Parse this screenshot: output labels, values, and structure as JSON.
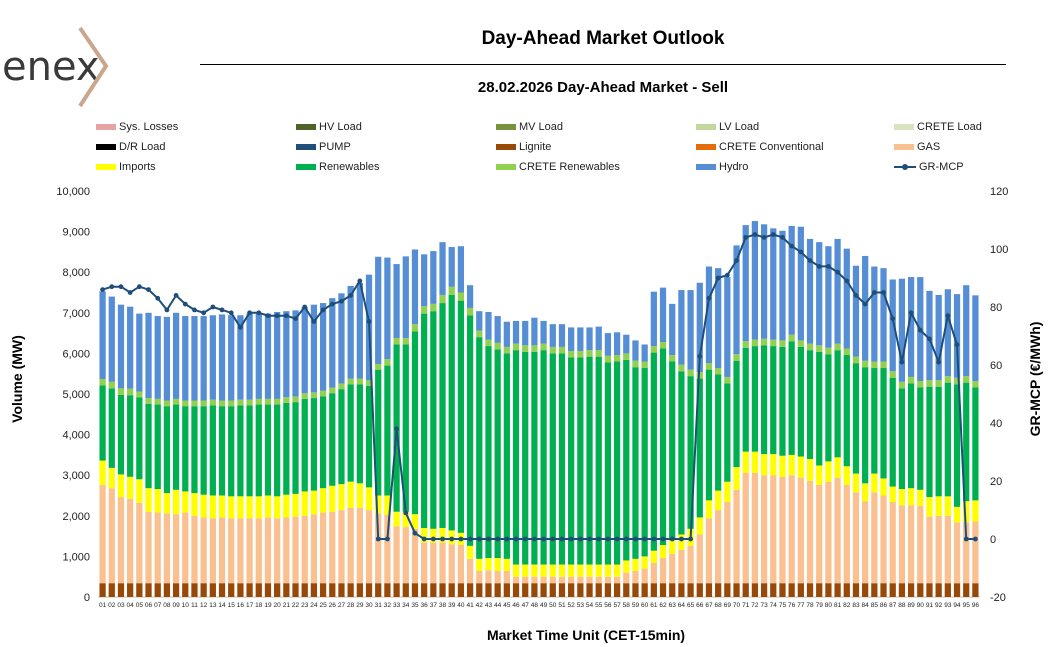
{
  "header": {
    "logo_text": "enex",
    "title": "Day-Ahead Market Outlook",
    "subtitle": "28.02.2026  Day-Ahead Market - Sell"
  },
  "colors": {
    "Sys. Losses": "#e6a3a3",
    "HV Load": "#4f6228",
    "MV Load": "#77933c",
    "LV Load": "#c3d69b",
    "CRETE Load": "#d7e4bd",
    "D/R Load": "#000000",
    "PUMP": "#1f4e79",
    "Lignite": "#984807",
    "CRETE Conventional": "#e46c0a",
    "GAS": "#fac090",
    "Imports": "#ffff00",
    "Renewables": "#00b050",
    "CRETE Renewables": "#92d050",
    "Hydro": "#558ed5",
    "GR-MCP": "#1f4e79"
  },
  "legend": [
    {
      "label": "Sys. Losses",
      "type": "bar"
    },
    {
      "label": "HV Load",
      "type": "bar"
    },
    {
      "label": "MV Load",
      "type": "bar"
    },
    {
      "label": "LV Load",
      "type": "bar"
    },
    {
      "label": "CRETE Load",
      "type": "bar"
    },
    {
      "label": "D/R Load",
      "type": "bar"
    },
    {
      "label": "PUMP",
      "type": "bar"
    },
    {
      "label": "Lignite",
      "type": "bar"
    },
    {
      "label": "CRETE Conventional",
      "type": "bar"
    },
    {
      "label": "GAS",
      "type": "bar"
    },
    {
      "label": "Imports",
      "type": "bar"
    },
    {
      "label": "Renewables",
      "type": "bar"
    },
    {
      "label": "CRETE Renewables",
      "type": "bar"
    },
    {
      "label": "Hydro",
      "type": "bar"
    },
    {
      "label": "GR-MCP",
      "type": "line"
    }
  ],
  "chart_data": {
    "type": "bar",
    "stacked": true,
    "xlabel": "Market Time Unit (CET-15min)",
    "ylabel": "Volume (MW)",
    "y2label": "GR-MCP (€/MWh)",
    "ylim": [
      0,
      10000
    ],
    "y2lim": [
      -20,
      120
    ],
    "yticks": [
      "0",
      "1,000",
      "2,000",
      "3,000",
      "4,000",
      "5,000",
      "6,000",
      "7,000",
      "8,000",
      "9,000",
      "10,000"
    ],
    "y2ticks": [
      "-20",
      "0",
      "20",
      "40",
      "60",
      "80",
      "100",
      "120"
    ],
    "categories": [
      "01",
      "02",
      "03",
      "04",
      "05",
      "06",
      "07",
      "08",
      "09",
      "10",
      "11",
      "12",
      "13",
      "14",
      "15",
      "16",
      "17",
      "18",
      "19",
      "20",
      "21",
      "22",
      "23",
      "24",
      "25",
      "26",
      "27",
      "28",
      "29",
      "30",
      "31",
      "32",
      "33",
      "34",
      "35",
      "36",
      "37",
      "38",
      "39",
      "40",
      "41",
      "42",
      "43",
      "44",
      "45",
      "46",
      "47",
      "48",
      "49",
      "50",
      "51",
      "52",
      "53",
      "54",
      "55",
      "56",
      "57",
      "58",
      "59",
      "60",
      "61",
      "62",
      "63",
      "64",
      "65",
      "66",
      "67",
      "68",
      "69",
      "70",
      "71",
      "72",
      "73",
      "74",
      "75",
      "76",
      "77",
      "78",
      "79",
      "80",
      "81",
      "82",
      "83",
      "84",
      "85",
      "86",
      "87",
      "88",
      "89",
      "90",
      "91",
      "92",
      "93",
      "94",
      "95",
      "96"
    ],
    "series": [
      {
        "name": "Lignite",
        "values": [
          340,
          340,
          340,
          340,
          340,
          340,
          340,
          340,
          340,
          340,
          340,
          340,
          340,
          340,
          340,
          340,
          340,
          340,
          340,
          340,
          340,
          340,
          340,
          340,
          340,
          340,
          340,
          340,
          340,
          340,
          340,
          340,
          340,
          340,
          340,
          340,
          340,
          340,
          340,
          340,
          340,
          340,
          340,
          340,
          340,
          340,
          340,
          340,
          340,
          340,
          340,
          340,
          340,
          340,
          340,
          340,
          340,
          340,
          340,
          340,
          340,
          340,
          340,
          340,
          340,
          340,
          340,
          340,
          340,
          340,
          340,
          340,
          340,
          340,
          340,
          340,
          340,
          340,
          340,
          340,
          340,
          340,
          340,
          340,
          340,
          340,
          340,
          340,
          340,
          340,
          340,
          340,
          340,
          340,
          340,
          340
        ]
      },
      {
        "name": "GAS",
        "values": [
          2420,
          2340,
          2120,
          2080,
          1980,
          1760,
          1740,
          1720,
          1700,
          1740,
          1660,
          1620,
          1600,
          1620,
          1600,
          1600,
          1600,
          1600,
          1620,
          1600,
          1620,
          1640,
          1660,
          1700,
          1740,
          1760,
          1800,
          1860,
          1860,
          1800,
          1720,
          1680,
          1400,
          1380,
          1340,
          1000,
          1000,
          1000,
          960,
          940,
          600,
          300,
          320,
          300,
          300,
          160,
          160,
          160,
          160,
          160,
          160,
          160,
          160,
          160,
          160,
          160,
          160,
          260,
          300,
          360,
          500,
          620,
          720,
          820,
          920,
          1200,
          1600,
          1800,
          2000,
          2300,
          2720,
          2720,
          2660,
          2660,
          2620,
          2660,
          2600,
          2520,
          2420,
          2500,
          2600,
          2420,
          2240,
          2020,
          2240,
          2160,
          2000,
          1920,
          1920,
          1900,
          1640,
          1660,
          1660,
          1500,
          1500,
          1520
        ]
      },
      {
        "name": "Imports",
        "values": [
          600,
          500,
          560,
          540,
          580,
          580,
          580,
          500,
          600,
          520,
          560,
          560,
          560,
          540,
          540,
          540,
          540,
          540,
          540,
          540,
          560,
          560,
          600,
          580,
          600,
          640,
          640,
          640,
          600,
          560,
          440,
          480,
          360,
          380,
          360,
          360,
          340,
          360,
          340,
          300,
          320,
          300,
          300,
          320,
          300,
          300,
          300,
          300,
          300,
          300,
          300,
          300,
          300,
          300,
          300,
          300,
          300,
          300,
          300,
          300,
          300,
          320,
          340,
          380,
          420,
          420,
          440,
          480,
          500,
          560,
          520,
          520,
          520,
          520,
          520,
          500,
          520,
          540,
          480,
          500,
          500,
          460,
          460,
          440,
          460,
          420,
          380,
          400,
          420,
          400,
          480,
          480,
          480,
          380,
          520,
          520
        ]
      },
      {
        "name": "Renewables",
        "values": [
          1850,
          1960,
          1960,
          2010,
          2020,
          2080,
          2080,
          2140,
          2100,
          2100,
          2140,
          2180,
          2220,
          2200,
          2220,
          2240,
          2240,
          2260,
          2240,
          2260,
          2260,
          2260,
          2280,
          2280,
          2260,
          2280,
          2340,
          2400,
          2440,
          2500,
          3100,
          3200,
          4120,
          4120,
          4500,
          5280,
          5360,
          5540,
          5800,
          5720,
          5680,
          5460,
          5220,
          5140,
          5060,
          5280,
          5240,
          5240,
          5280,
          5200,
          5200,
          5100,
          5100,
          5120,
          5120,
          4980,
          5000,
          4940,
          4720,
          4640,
          4880,
          4840,
          4400,
          4020,
          3760,
          3420,
          3220,
          2860,
          2420,
          2620,
          2560,
          2600,
          2680,
          2660,
          2680,
          2800,
          2700,
          2680,
          2800,
          2640,
          2640,
          2740,
          2720,
          2860,
          2600,
          2720,
          2680,
          2480,
          2580,
          2520,
          2720,
          2700,
          2800,
          3020,
          2920,
          2780
        ]
      },
      {
        "name": "CRETE Renewables",
        "values": [
          160,
          160,
          160,
          160,
          140,
          140,
          140,
          140,
          140,
          140,
          140,
          140,
          140,
          140,
          140,
          140,
          140,
          140,
          140,
          140,
          140,
          140,
          140,
          140,
          140,
          140,
          140,
          140,
          140,
          140,
          140,
          160,
          160,
          160,
          180,
          180,
          180,
          200,
          200,
          200,
          180,
          160,
          160,
          160,
          160,
          160,
          160,
          160,
          160,
          160,
          160,
          160,
          160,
          160,
          160,
          160,
          160,
          160,
          160,
          160,
          160,
          160,
          160,
          160,
          160,
          160,
          160,
          160,
          160,
          160,
          160,
          160,
          160,
          160,
          160,
          160,
          160,
          160,
          160,
          160,
          160,
          160,
          160,
          160,
          160,
          160,
          160,
          160,
          160,
          160,
          160,
          160,
          160,
          160,
          160,
          160
        ]
      },
      {
        "name": "Hydro",
        "values": [
          2160,
          2100,
          2060,
          2020,
          1920,
          2100,
          2040,
          2060,
          2120,
          2080,
          2080,
          2080,
          2080,
          2120,
          2100,
          2080,
          2120,
          2100,
          2100,
          2140,
          2120,
          2120,
          2120,
          2160,
          2160,
          2200,
          2220,
          2280,
          2360,
          2600,
          2640,
          2500,
          1820,
          2010,
          1840,
          1280,
          1300,
          1300,
          980,
          1140,
          560,
          480,
          680,
          660,
          620,
          560,
          600,
          680,
          560,
          560,
          560,
          580,
          580,
          560,
          580,
          560,
          560,
          460,
          500,
          420,
          1340,
          1340,
          1260,
          1840,
          1960,
          2200,
          2380,
          2460,
          2460,
          2680,
          2860,
          2920,
          2820,
          2740,
          2700,
          2680,
          2800,
          2580,
          2540,
          2500,
          2580,
          2460,
          2240,
          2580,
          2340,
          2300,
          2260,
          2540,
          2460,
          2560,
          2200,
          2100,
          2140,
          2060,
          2240,
          2110
        ]
      }
    ],
    "line": {
      "name": "GR-MCP",
      "axis": "right",
      "values": [
        86,
        87,
        87,
        85,
        87,
        86,
        83,
        79,
        84,
        81,
        79,
        78,
        80,
        79,
        78,
        73,
        78,
        78,
        77,
        77,
        77,
        76,
        80,
        75,
        79,
        81,
        82,
        84,
        89,
        75,
        0,
        0,
        38,
        9,
        2,
        0,
        0,
        0,
        0,
        0,
        0,
        0,
        0,
        0,
        0,
        0,
        0,
        0,
        0,
        0,
        0,
        0,
        0,
        0,
        0,
        0,
        0,
        0,
        0,
        0,
        0,
        0,
        0,
        0,
        0,
        63,
        83,
        90,
        91,
        96,
        104,
        105,
        104,
        105,
        104,
        101,
        99,
        96,
        94,
        94,
        92,
        89,
        84,
        81,
        85,
        85,
        76,
        61,
        78,
        72,
        69,
        61,
        77,
        67,
        0,
        0
      ]
    }
  }
}
